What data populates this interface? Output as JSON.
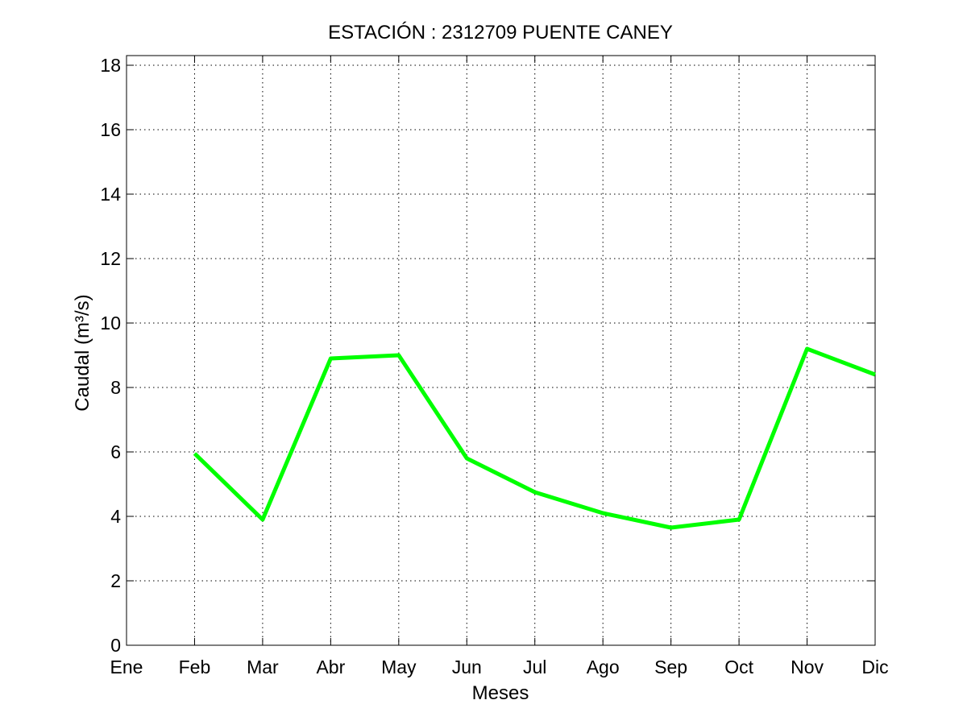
{
  "chart_data": {
    "type": "line",
    "title": "ESTACIÓN :  2312709  PUENTE CANEY",
    "xlabel": "Meses",
    "ylabel": "Caudal (m³/s)",
    "categories": [
      "Ene",
      "Feb",
      "Mar",
      "Abr",
      "May",
      "Jun",
      "Jul",
      "Ago",
      "Sep",
      "Oct",
      "Nov",
      "Dic"
    ],
    "xlim": [
      1,
      12
    ],
    "ylim": [
      0,
      18
    ],
    "yticks": [
      0,
      2,
      4,
      6,
      8,
      10,
      12,
      14,
      16,
      18
    ],
    "grid": true,
    "series": [
      {
        "x": [
          2,
          3,
          4,
          5,
          6,
          7,
          8,
          9,
          10,
          11,
          12
        ],
        "values": [
          5.95,
          3.9,
          8.9,
          9.0,
          5.8,
          4.75,
          4.1,
          3.65,
          3.9,
          9.2,
          8.4
        ],
        "color": "#00ff00"
      }
    ]
  }
}
